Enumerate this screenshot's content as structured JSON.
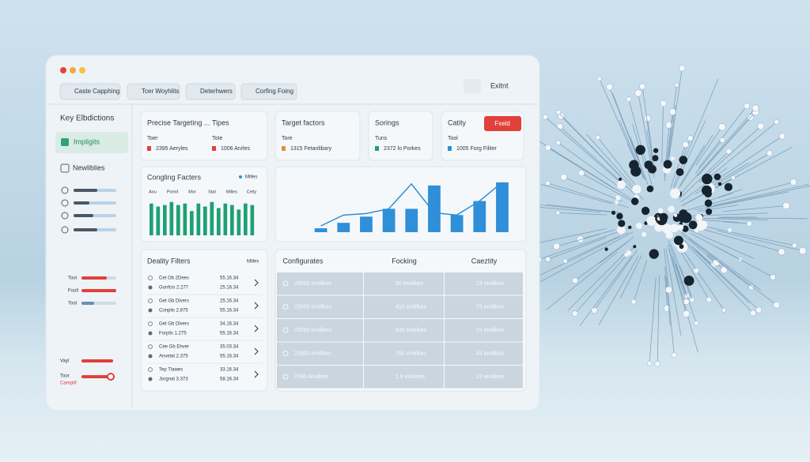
{
  "window": {
    "tabs": [
      "Caste Capphing",
      "Tcer Woyhlits",
      "Deterhwers",
      "Corfing Foing"
    ],
    "export": "Exitnt"
  },
  "sidebar": {
    "title": "Key Elbdictions",
    "items": [
      "Impligits",
      "Newliblies"
    ],
    "filters": [
      "Tool",
      "Fooll",
      "Tool"
    ],
    "controls": [
      "Vayl",
      "Toor",
      "Camptif"
    ]
  },
  "cards": [
    {
      "title": "Precise Targeting ...",
      "subtitle": "Tipes",
      "rows": [
        {
          "label": "Toer",
          "value": "2395 Aeryles"
        },
        {
          "label": "Tote",
          "value": "1006 Anrles"
        }
      ]
    },
    {
      "title": "Target factors",
      "rows": [
        {
          "label": "Tore",
          "value": "1315 Fetanlibary"
        }
      ]
    },
    {
      "title": "Sorings",
      "rows": [
        {
          "label": "Tuns",
          "value": "2372 lo Porkes"
        }
      ]
    },
    {
      "title": "Catity",
      "button": "Fxeld",
      "rows": [
        {
          "label": "Tool",
          "value": "1005 Forg Filiter"
        }
      ]
    }
  ],
  "chart_data": [
    {
      "type": "bar",
      "title": "Congling Facters",
      "column_labels": [
        "Aou",
        "Pornit",
        "Mor",
        "Stat",
        "Milles",
        "Cetty"
      ],
      "series": [
        {
          "name": "Milles",
          "color": "#1fa074",
          "values": [
            42,
            38,
            40,
            44,
            40,
            42,
            32,
            42,
            38,
            44,
            36,
            42,
            40,
            34,
            42,
            40
          ]
        }
      ],
      "ylim": [
        0,
        50
      ]
    },
    {
      "type": "bar-line",
      "series": [
        {
          "kind": "bar",
          "color": "#2f8fd8",
          "values": [
            5,
            12,
            20,
            30,
            30,
            60,
            22,
            40,
            64
          ]
        },
        {
          "kind": "line",
          "color": "#2f8fd8",
          "values": [
            8,
            22,
            24,
            30,
            62,
            25,
            22,
            40,
            64
          ]
        }
      ],
      "ylim": [
        0,
        70
      ]
    }
  ],
  "list": {
    "title": "Deality Filters",
    "legend": "Milles",
    "rows": [
      {
        "title": "Cet Ob 2Dees",
        "code": "Gonfcis 2.277",
        "a": "55.16.34",
        "b": "25.16.34"
      },
      {
        "title": "Get Gb Dlvers",
        "code": "Conplis 2.875",
        "a": "25.16.34",
        "b": "55.16.34"
      },
      {
        "title": "Get Gb Dlvers",
        "code": "Forplis 1.275",
        "a": "34.16.34",
        "b": "55.16.34"
      },
      {
        "title": "Cee Gb Ehver",
        "code": "Anvelat 2.375",
        "a": "35.03.34",
        "b": "55.16.34"
      },
      {
        "title": "Tep Tlawes",
        "code": "Jorgnat 3.373",
        "a": "33.16.34",
        "b": "58.16.34"
      }
    ]
  },
  "table": {
    "headers": [
      "Configurates",
      "Focking",
      "Caeztity"
    ],
    "rows": [
      [
        "23500 emiilkes",
        "50 emiilkes",
        "13 emiilkes"
      ],
      [
        "23500 emiilkes",
        "410 emiilkes",
        "72 emiilkes"
      ],
      [
        "23500 emiilkes",
        "530 emiilkes",
        "15 emiilkes"
      ],
      [
        "23500 emiilkes",
        "250 emiilkes",
        "43 emiilkes"
      ],
      [
        "2390 Amiilkes",
        "1.0 emiilkes",
        "22 emiilkes"
      ]
    ]
  }
}
